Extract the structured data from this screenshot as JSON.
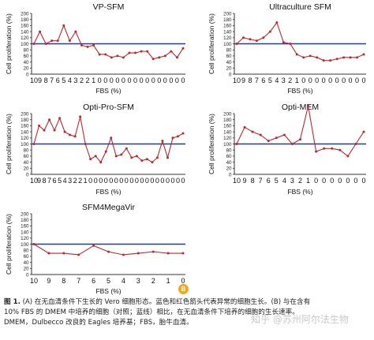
{
  "chart_data": [
    {
      "type": "line",
      "title": "VP-SFM",
      "xlabel": "FBS (%)",
      "ylabel": "Cell proliferation (%)",
      "ylim": [
        0,
        200
      ],
      "yticks": [
        0,
        20,
        40,
        60,
        80,
        100,
        120,
        140,
        160,
        180,
        200
      ],
      "categories": [
        "10",
        "9",
        "8",
        "7",
        "6",
        "5",
        "4",
        "3",
        "2",
        "2",
        "1",
        "0",
        "0",
        "0",
        "0",
        "0",
        "0",
        "0",
        "0",
        "0",
        "0",
        "0",
        "0",
        "0",
        "0",
        "0"
      ],
      "reference_line": 100,
      "series": [
        {
          "values": [
            100,
            140,
            100,
            110,
            110,
            160,
            110,
            140,
            95,
            90,
            95,
            65,
            65,
            55,
            60,
            55,
            70,
            70,
            75,
            75,
            50,
            55,
            60,
            75,
            55,
            85
          ]
        }
      ],
      "grid": false
    },
    {
      "type": "line",
      "title": "Ultraculture SFM",
      "xlabel": "FBS (%)",
      "ylabel": "Cell proliferation (%)",
      "ylim": [
        0,
        200
      ],
      "yticks": [
        0,
        20,
        40,
        60,
        80,
        100,
        120,
        140,
        160,
        180,
        200
      ],
      "categories": [
        "10",
        "9",
        "8",
        "7",
        "6",
        "5",
        "4",
        "3",
        "2",
        "1",
        "0",
        "0",
        "0",
        "0",
        "0",
        "0",
        "0",
        "0",
        "0",
        "0"
      ],
      "reference_line": 100,
      "series": [
        {
          "values": [
            100,
            120,
            115,
            110,
            120,
            140,
            170,
            105,
            100,
            65,
            55,
            60,
            55,
            45,
            45,
            50,
            55,
            55,
            55,
            65
          ]
        }
      ],
      "grid": false
    },
    {
      "type": "line",
      "title": "Opti-Pro-SFM",
      "xlabel": "FBS (%)",
      "ylabel": "Cell proliferation (%)",
      "ylim": [
        0,
        200
      ],
      "yticks": [
        0,
        20,
        40,
        60,
        80,
        100,
        120,
        140,
        160,
        180,
        200
      ],
      "categories": [
        "10",
        "9",
        "8",
        "7",
        "6",
        "5",
        "4",
        "3",
        "2",
        "2",
        "1",
        "0",
        "0",
        "0",
        "0",
        "0",
        "0",
        "0",
        "0",
        "0",
        "0",
        "0",
        "0",
        "0",
        "0",
        "0",
        "0",
        "0",
        "0",
        "0"
      ],
      "reference_line": 100,
      "series": [
        {
          "values": [
            100,
            160,
            145,
            180,
            145,
            185,
            140,
            130,
            125,
            190,
            100,
            50,
            60,
            40,
            75,
            120,
            60,
            65,
            85,
            55,
            60,
            45,
            50,
            40,
            55,
            110,
            55,
            120,
            125,
            135
          ]
        }
      ],
      "grid": false
    },
    {
      "type": "line",
      "title": "Opti-MEM",
      "xlabel": "FBS (%)",
      "ylabel": "Cell proliferation (%)",
      "ylim": [
        0,
        200
      ],
      "yticks": [
        0,
        20,
        40,
        60,
        80,
        100,
        120,
        140,
        160,
        180,
        200
      ],
      "categories": [
        "10",
        "9",
        "8",
        "7",
        "6",
        "5",
        "4",
        "3",
        "2",
        "1",
        "0",
        "0",
        "0",
        "0",
        "0",
        "0",
        "0"
      ],
      "reference_line": 100,
      "series": [
        {
          "values": [
            100,
            155,
            140,
            130,
            110,
            120,
            130,
            100,
            115,
            225,
            75,
            85,
            85,
            80,
            60,
            100,
            140
          ]
        }
      ],
      "grid": false
    },
    {
      "type": "line",
      "title": "SFM4MegaVir",
      "xlabel": "FBS (%)",
      "ylabel": "Cell proliferation (%)",
      "ylim": [
        0,
        200
      ],
      "yticks": [
        0,
        20,
        40,
        60,
        80,
        100,
        120,
        140,
        160,
        180,
        200
      ],
      "categories": [
        "10",
        "9",
        "8",
        "7",
        "6",
        "5",
        "4",
        "3",
        "2",
        "1",
        "0"
      ],
      "reference_line": 100,
      "series": [
        {
          "values": [
            100,
            70,
            70,
            65,
            95,
            75,
            65,
            70,
            75,
            70,
            70
          ]
        }
      ],
      "grid": false
    }
  ],
  "panel_marker": "B",
  "caption": {
    "line1_bold": "图 1.",
    "line1": " (A) 在无血清条件下生长的 Vero 细胞形态。蓝色和红色箭头代表异常的细胞生长。(B) 与在含有",
    "line2": "10% FBS 的 DMEM 中培养的细胞（对照；蓝线）相比，在无血清条件下培养的细胞的生长速率。",
    "line3": "DMEM，Dulbecco 改良的 Eagles 培养基；FBS，胎牛血清。"
  },
  "watermark": "知乎 @苏州阿尔法生物",
  "colors": {
    "series": "#c0272d",
    "reference": "#1f3f8f",
    "axis": "#333333",
    "marker": "#f2a81d"
  }
}
